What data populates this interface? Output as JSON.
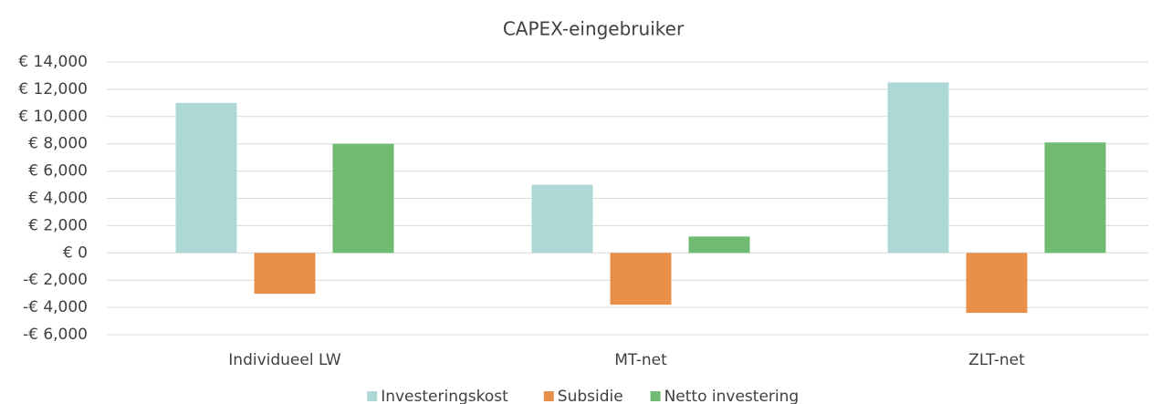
{
  "chart_data": {
    "type": "bar",
    "title": "CAPEX-eingebruiker",
    "categories": [
      "Individueel LW",
      "MT-net",
      "ZLT-net"
    ],
    "series": [
      {
        "name": "Investeringskost",
        "color": "#aed8d6",
        "values": [
          11000,
          5000,
          12500
        ]
      },
      {
        "name": "Subsidie",
        "color": "#e8904a",
        "values": [
          -3000,
          -3800,
          -4400
        ]
      },
      {
        "name": "Netto investering",
        "color": "#70bb72",
        "values": [
          8000,
          1200,
          8100
        ]
      }
    ],
    "ylim": [
      -6000,
      14000
    ],
    "yticks": [
      {
        "value": -6000,
        "label": "-€ 6,000"
      },
      {
        "value": -4000,
        "label": "-€ 4,000"
      },
      {
        "value": -2000,
        "label": "-€ 2,000"
      },
      {
        "value": 0,
        "label": "€ 0"
      },
      {
        "value": 2000,
        "label": "€ 2,000"
      },
      {
        "value": 4000,
        "label": "€ 4,000"
      },
      {
        "value": 6000,
        "label": "€ 6,000"
      },
      {
        "value": 8000,
        "label": "€ 8,000"
      },
      {
        "value": 10000,
        "label": "€ 10,000"
      },
      {
        "value": 12000,
        "label": "€ 12,000"
      },
      {
        "value": 14000,
        "label": "€ 14,000"
      }
    ],
    "grid": true,
    "legend": "bottom"
  }
}
